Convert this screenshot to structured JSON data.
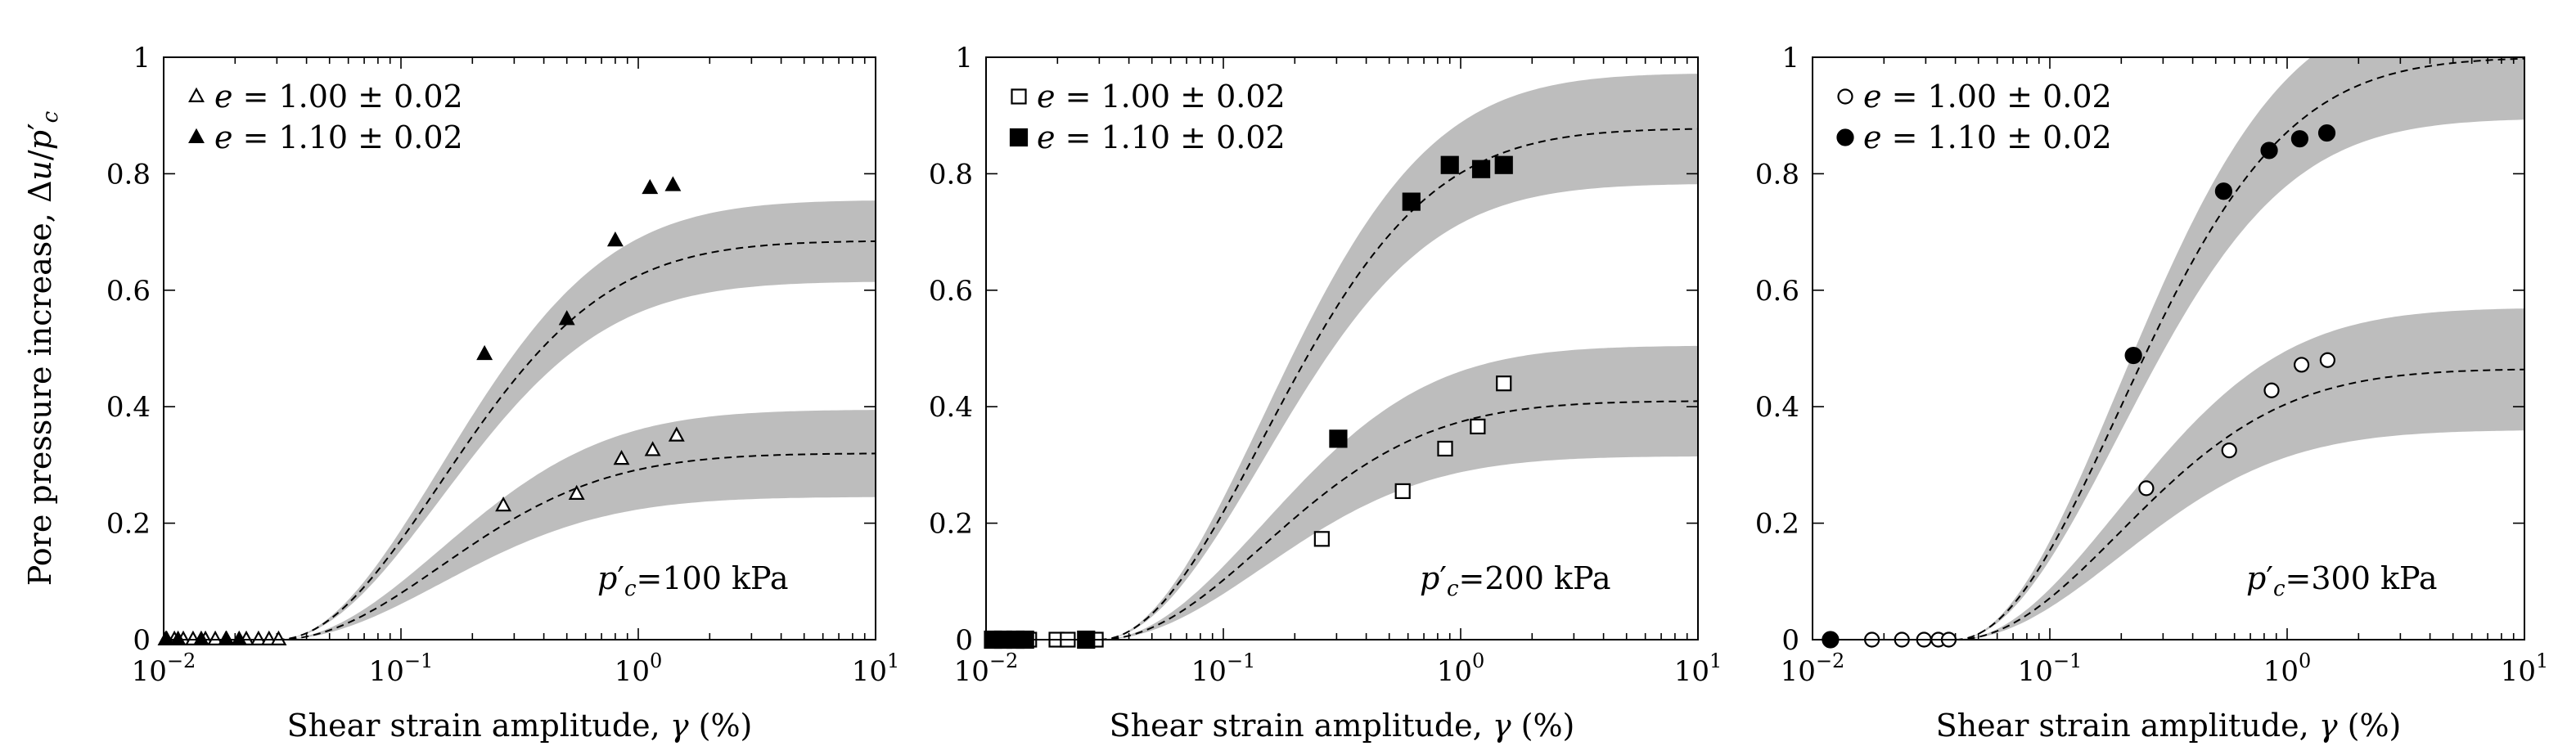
{
  "figure": {
    "y_axis_title": {
      "main": "Pore pressure increase, Δ",
      "var1": "u",
      "slash": "/",
      "var2": "p",
      "prime": "′",
      "sub": "c"
    },
    "x_axis_title": {
      "main": "Shear strain amplitude, ",
      "var": "γ",
      "unit": " (%)"
    },
    "x_tick_labels": [
      {
        "base": "10",
        "exp": "−2"
      },
      {
        "base": "10",
        "exp": "−1"
      },
      {
        "base": "10",
        "exp": "0"
      },
      {
        "base": "10",
        "exp": "1"
      }
    ],
    "y_tick_labels": [
      "0",
      "0.2",
      "0.4",
      "0.6",
      "0.8",
      "1"
    ]
  },
  "chart_data": [
    {
      "type": "scatter",
      "title": "p′c=100 kPa",
      "pressure_label": {
        "var": "p",
        "prime": "′",
        "sub": "c",
        "value": "=100 kPa"
      },
      "xscale": "log",
      "xlim": [
        0.01,
        10
      ],
      "ylim": [
        0,
        1
      ],
      "xlabel": "Shear strain amplitude, γ (%)",
      "ylabel": "Pore pressure increase, Δu/p′c",
      "legend_position": "top-left",
      "series": [
        {
          "name": "e = 1.00 ± 0.02",
          "legend": {
            "var": "e",
            "text": " = 1.00 ± 0.02"
          },
          "marker": "triangle-open",
          "points": [
            [
              0.0102,
              0
            ],
            [
              0.0111,
              0
            ],
            [
              0.0121,
              0
            ],
            [
              0.0133,
              0
            ],
            [
              0.015,
              0
            ],
            [
              0.0165,
              0
            ],
            [
              0.0183,
              0
            ],
            [
              0.0223,
              0
            ],
            [
              0.0251,
              0
            ],
            [
              0.0278,
              0
            ],
            [
              0.0305,
              0
            ],
            [
              0.27,
              0.23
            ],
            [
              0.55,
              0.25
            ],
            [
              0.85,
              0.31
            ],
            [
              1.15,
              0.325
            ],
            [
              1.45,
              0.35
            ]
          ]
        },
        {
          "name": "e = 1.10 ± 0.02",
          "legend": {
            "var": "e",
            "text": " = 1.10 ± 0.02"
          },
          "marker": "triangle-filled",
          "points": [
            [
              0.0103,
              0
            ],
            [
              0.0115,
              0
            ],
            [
              0.0144,
              0
            ],
            [
              0.0184,
              0
            ],
            [
              0.0208,
              0
            ],
            [
              0.225,
              0.49
            ],
            [
              0.5,
              0.55
            ],
            [
              0.8,
              0.685
            ],
            [
              1.12,
              0.775
            ],
            [
              1.4,
              0.78
            ]
          ]
        }
      ],
      "fit_curves": [
        {
          "name": "fit e=1.00",
          "threshold": 0.03,
          "plateau": 0.32,
          "band": 0.075
        },
        {
          "name": "fit e=1.10",
          "threshold": 0.03,
          "plateau": 0.685,
          "band": 0.07
        }
      ]
    },
    {
      "type": "scatter",
      "title": "p′c=200 kPa",
      "pressure_label": {
        "var": "p",
        "prime": "′",
        "sub": "c",
        "value": "=200 kPa"
      },
      "xscale": "log",
      "xlim": [
        0.01,
        10
      ],
      "ylim": [
        0,
        1
      ],
      "xlabel": "Shear strain amplitude, γ (%)",
      "ylabel": "Pore pressure increase, Δu/p′c",
      "legend_position": "top-left",
      "series": [
        {
          "name": "e = 1.00 ± 0.02",
          "legend": {
            "var": "e",
            "text": " = 1.00 ± 0.02"
          },
          "marker": "square-open",
          "points": [
            [
              0.0115,
              0
            ],
            [
              0.0126,
              0
            ],
            [
              0.0138,
              0
            ],
            [
              0.0152,
              0
            ],
            [
              0.0198,
              0
            ],
            [
              0.0221,
              0
            ],
            [
              0.0268,
              0
            ],
            [
              0.029,
              0
            ],
            [
              0.26,
              0.173
            ],
            [
              0.57,
              0.255
            ],
            [
              0.86,
              0.328
            ],
            [
              1.18,
              0.366
            ],
            [
              1.52,
              0.44
            ]
          ]
        },
        {
          "name": "e = 1.10 ± 0.02",
          "legend": {
            "var": "e",
            "text": " = 1.10 ± 0.02"
          },
          "marker": "square-filled",
          "points": [
            [
              0.0107,
              0
            ],
            [
              0.0118,
              0
            ],
            [
              0.0133,
              0
            ],
            [
              0.0146,
              0
            ],
            [
              0.0264,
              0
            ],
            [
              0.305,
              0.345
            ],
            [
              0.62,
              0.752
            ],
            [
              0.9,
              0.815
            ],
            [
              1.22,
              0.808
            ],
            [
              1.52,
              0.815
            ]
          ]
        }
      ],
      "fit_curves": [
        {
          "name": "fit e=1.00",
          "threshold": 0.03,
          "plateau": 0.41,
          "band": 0.095
        },
        {
          "name": "fit e=1.10",
          "threshold": 0.03,
          "plateau": 0.878,
          "band": 0.095
        }
      ]
    },
    {
      "type": "scatter",
      "title": "p′c=300 kPa",
      "pressure_label": {
        "var": "p",
        "prime": "′",
        "sub": "c",
        "value": "=300 kPa"
      },
      "xscale": "log",
      "xlim": [
        0.01,
        10
      ],
      "ylim": [
        0,
        1
      ],
      "xlabel": "Shear strain amplitude, γ (%)",
      "ylabel": "Pore pressure increase, Δu/p′c",
      "legend_position": "top-left",
      "series": [
        {
          "name": "e = 1.00 ± 0.02",
          "legend": {
            "var": "e",
            "text": " = 1.00 ± 0.02"
          },
          "marker": "circle-open",
          "points": [
            [
              0.0178,
              0
            ],
            [
              0.0238,
              0
            ],
            [
              0.0295,
              0
            ],
            [
              0.0339,
              0
            ],
            [
              0.0375,
              0
            ],
            [
              0.255,
              0.26
            ],
            [
              0.57,
              0.325
            ],
            [
              0.86,
              0.428
            ],
            [
              1.15,
              0.472
            ],
            [
              1.48,
              0.48
            ]
          ]
        },
        {
          "name": "e = 1.10 ± 0.02",
          "legend": {
            "var": "e",
            "text": " = 1.10 ± 0.02"
          },
          "marker": "circle-filled",
          "points": [
            [
              0.0119,
              0
            ],
            [
              0.225,
              0.488
            ],
            [
              0.54,
              0.77
            ],
            [
              0.84,
              0.84
            ],
            [
              1.13,
              0.86
            ],
            [
              1.47,
              0.87
            ]
          ]
        }
      ],
      "fit_curves": [
        {
          "name": "fit e=1.00",
          "threshold": 0.04,
          "plateau": 0.465,
          "band": 0.105
        },
        {
          "name": "fit e=1.10",
          "threshold": 0.04,
          "plateau": 1.0,
          "band": 0.105
        }
      ]
    }
  ]
}
